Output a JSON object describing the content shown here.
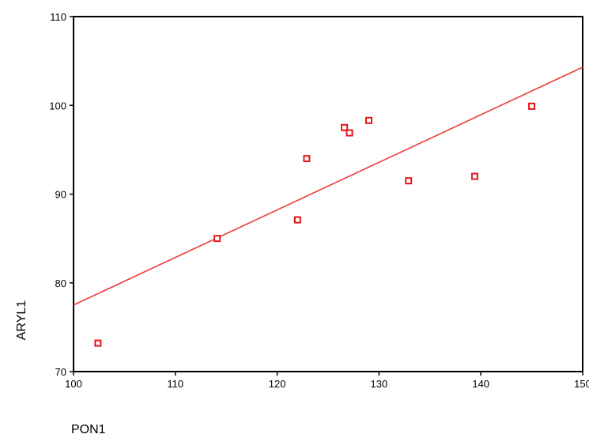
{
  "chart_data": {
    "type": "scatter",
    "title": "",
    "xlabel": "PON1",
    "ylabel": "ARYL1",
    "xlim": [
      100,
      150
    ],
    "ylim": [
      70,
      110
    ],
    "xticks": [
      100,
      110,
      120,
      130,
      140,
      150
    ],
    "yticks": [
      70,
      80,
      90,
      100,
      110
    ],
    "grid": false,
    "marker_color": "#e8141b",
    "line_color": "#ee3a3a",
    "points": [
      {
        "x": 102.4,
        "y": 73.2
      },
      {
        "x": 114.1,
        "y": 85.0
      },
      {
        "x": 122.0,
        "y": 87.1
      },
      {
        "x": 122.9,
        "y": 94.0
      },
      {
        "x": 126.6,
        "y": 97.5
      },
      {
        "x": 127.1,
        "y": 96.9
      },
      {
        "x": 129.0,
        "y": 98.3
      },
      {
        "x": 132.9,
        "y": 91.5
      },
      {
        "x": 139.4,
        "y": 92.0
      },
      {
        "x": 145.0,
        "y": 99.9
      }
    ],
    "fit_line": {
      "x": [
        100,
        150
      ],
      "y": [
        77.5,
        104.3
      ]
    }
  }
}
